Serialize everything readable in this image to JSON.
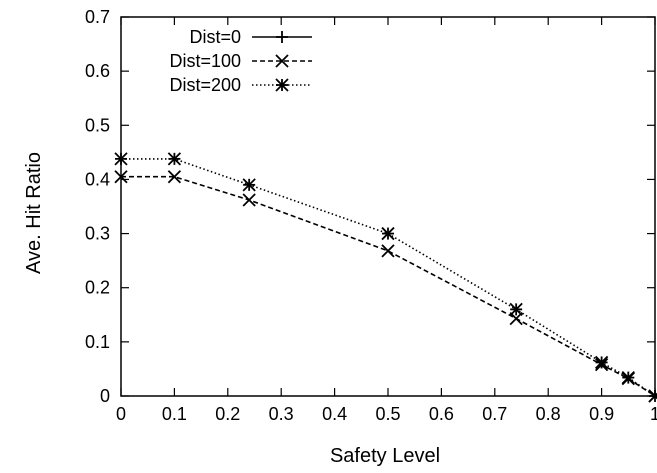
{
  "chart_data": {
    "type": "line",
    "title": "",
    "xlabel": "Safety Level",
    "ylabel": "Ave. Hit Ratio",
    "xticks": [
      "0",
      "0.1",
      "0.2",
      "0.3",
      "0.4",
      "0.5",
      "0.6",
      "0.7",
      "0.8",
      "0.9",
      "1"
    ],
    "yticks": [
      "0",
      "0.1",
      "0.2",
      "0.3",
      "0.4",
      "0.5",
      "0.6",
      "0.7"
    ],
    "xlim": [
      0,
      1
    ],
    "ylim": [
      0,
      0.7
    ],
    "grid": false,
    "legend_position": "top-left",
    "series": [
      {
        "name": "Dist=0",
        "marker": "plus",
        "dash": "solid",
        "x": [],
        "y": []
      },
      {
        "name": "Dist=100",
        "marker": "cross",
        "dash": "dashed",
        "x": [
          0,
          0.1,
          0.24,
          0.5,
          0.74,
          0.9,
          0.95,
          1
        ],
        "y": [
          0.405,
          0.405,
          0.362,
          0.268,
          0.143,
          0.058,
          0.032,
          0
        ]
      },
      {
        "name": "Dist=200",
        "marker": "star",
        "dash": "dotted",
        "x": [
          0,
          0.1,
          0.24,
          0.5,
          0.74,
          0.9,
          0.95,
          1
        ],
        "y": [
          0.438,
          0.438,
          0.39,
          0.3,
          0.16,
          0.062,
          0.034,
          0
        ]
      }
    ]
  }
}
